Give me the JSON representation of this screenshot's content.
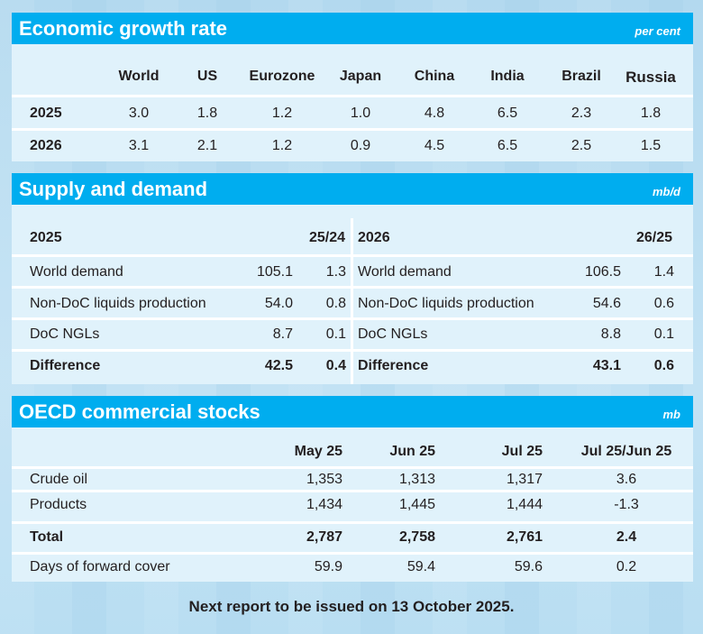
{
  "growth": {
    "title": "Economic growth rate",
    "unit": "per cent",
    "columns": [
      "World",
      "US",
      "Eurozone",
      "Japan",
      "China",
      "India",
      "Brazil",
      "Russia"
    ],
    "rows": [
      {
        "label": "2025",
        "values": [
          "3.0",
          "1.8",
          "1.2",
          "1.0",
          "4.8",
          "6.5",
          "2.3",
          "1.8"
        ]
      },
      {
        "label": "2026",
        "values": [
          "3.1",
          "2.1",
          "1.2",
          "0.9",
          "4.5",
          "6.5",
          "2.5",
          "1.5"
        ]
      }
    ]
  },
  "supply": {
    "title": "Supply and demand",
    "unit": "mb/d",
    "left": {
      "year": "2025",
      "change_label": "25/24",
      "rows": [
        {
          "label": "World demand",
          "value": "105.1",
          "change": "1.3"
        },
        {
          "label": "Non-DoC liquids production",
          "value": "54.0",
          "change": "0.8"
        },
        {
          "label": "DoC NGLs",
          "value": "8.7",
          "change": "0.1"
        },
        {
          "label": "Difference",
          "value": "42.5",
          "change": "0.4"
        }
      ]
    },
    "right": {
      "year": "2026",
      "change_label": "26/25",
      "rows": [
        {
          "label": "World demand",
          "value": "106.5",
          "change": "1.4"
        },
        {
          "label": "Non-DoC liquids production",
          "value": "54.6",
          "change": "0.6"
        },
        {
          "label": "DoC NGLs",
          "value": "8.8",
          "change": "0.1"
        },
        {
          "label": "Difference",
          "value": "43.1",
          "change": "0.6"
        }
      ]
    }
  },
  "stocks": {
    "title": "OECD commercial stocks",
    "unit": "mb",
    "columns": [
      "May 25",
      "Jun 25",
      "Jul 25",
      "Jul 25/Jun 25"
    ],
    "rows": [
      {
        "label": "Crude oil",
        "values": [
          "1,353",
          "1,313",
          "1,317",
          "3.6"
        ]
      },
      {
        "label": "Products",
        "values": [
          "1,434",
          "1,445",
          "1,444",
          "-1.3"
        ]
      },
      {
        "label": "Total",
        "values": [
          "2,787",
          "2,758",
          "2,761",
          "2.4"
        ]
      },
      {
        "label": "Days of forward cover",
        "values": [
          "59.9",
          "59.4",
          "59.6",
          "0.2"
        ]
      }
    ]
  },
  "footer": "Next report to be issued on 13 October 2025.",
  "colors": {
    "header": "#00adef",
    "panel": "#e0f2fb"
  }
}
